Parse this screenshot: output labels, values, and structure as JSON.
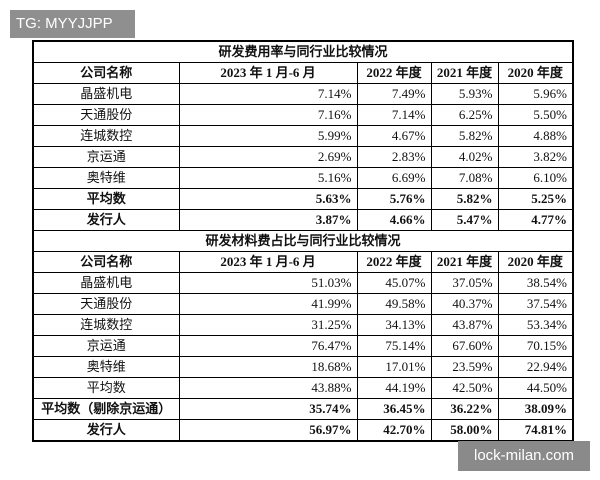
{
  "watermark": "TG: MYYJJPP",
  "footer": "lock-milan.com",
  "sections": [
    {
      "title": "研发费用率与同行业比较情况",
      "header": [
        "公司名称",
        "2023 年 1 月-6 月",
        "2022 年度",
        "2021 年度",
        "2020 年度"
      ],
      "rows": [
        [
          "晶盛机电",
          "7.14%",
          "7.49%",
          "5.93%",
          "5.96%"
        ],
        [
          "天通股份",
          "7.16%",
          "7.14%",
          "6.25%",
          "5.50%"
        ],
        [
          "连城数控",
          "5.99%",
          "4.67%",
          "5.82%",
          "4.88%"
        ],
        [
          "京运通",
          "2.69%",
          "2.83%",
          "4.02%",
          "3.82%"
        ],
        [
          "奥特维",
          "5.16%",
          "6.69%",
          "7.08%",
          "6.10%"
        ],
        [
          "平均数",
          "5.63%",
          "5.76%",
          "5.82%",
          "5.25%"
        ],
        [
          "发行人",
          "3.87%",
          "4.66%",
          "5.47%",
          "4.77%"
        ]
      ]
    },
    {
      "title": "研发材料费占比与同行业比较情况",
      "header": [
        "公司名称",
        "2023 年 1 月-6 月",
        "2022 年度",
        "2021 年度",
        "2020 年度"
      ],
      "rows": [
        [
          "晶盛机电",
          "51.03%",
          "45.07%",
          "37.05%",
          "38.54%"
        ],
        [
          "天通股份",
          "41.99%",
          "49.58%",
          "40.37%",
          "37.54%"
        ],
        [
          "连城数控",
          "31.25%",
          "34.13%",
          "43.87%",
          "53.34%"
        ],
        [
          "京运通",
          "76.47%",
          "75.14%",
          "67.60%",
          "70.15%"
        ],
        [
          "奥特维",
          "18.68%",
          "17.01%",
          "23.59%",
          "22.94%"
        ],
        [
          "平均数",
          "43.88%",
          "44.19%",
          "42.50%",
          "44.50%"
        ],
        [
          "平均数（剔除京运通）",
          "35.74%",
          "36.45%",
          "36.22%",
          "38.09%"
        ],
        [
          "发行人",
          "56.97%",
          "42.70%",
          "58.00%",
          "74.81%"
        ]
      ]
    }
  ]
}
